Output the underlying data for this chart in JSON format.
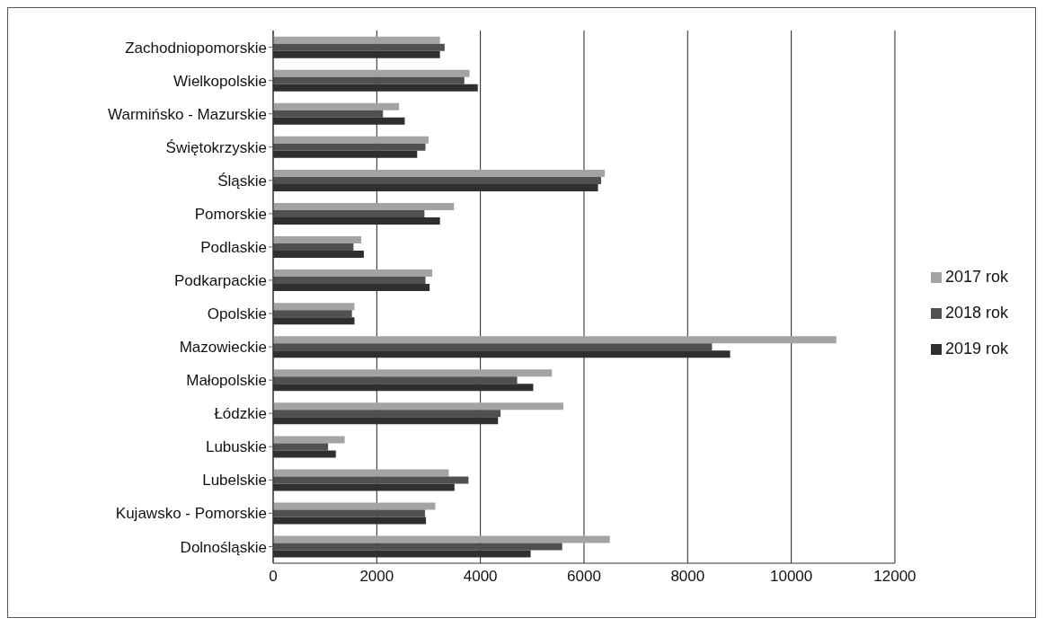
{
  "chart_data": {
    "type": "bar",
    "orientation": "horizontal",
    "categories": [
      "Zachodniopomorskie",
      "Wielkopolskie",
      "Warmińsko - Mazurskie",
      "Świętokrzyskie",
      "Śląskie",
      "Pomorskie",
      "Podlaskie",
      "Podkarpackie",
      "Opolskie",
      "Mazowieckie",
      "Małopolskie",
      "Łódzkie",
      "Lubuskie",
      "Lubelskie",
      "Kujawsko - Pomorskie",
      "Dolnośląskie"
    ],
    "series": [
      {
        "name": "2017 rok",
        "color": "#a3a3a3",
        "values": [
          3220,
          3790,
          2430,
          3000,
          6400,
          3490,
          1700,
          3070,
          1570,
          10870,
          5380,
          5600,
          1380,
          3390,
          3130,
          6500
        ]
      },
      {
        "name": "2018 rok",
        "color": "#505050",
        "values": [
          3310,
          3690,
          2120,
          2940,
          6330,
          2920,
          1550,
          2940,
          1520,
          8470,
          4710,
          4390,
          1060,
          3770,
          2930,
          5580
        ]
      },
      {
        "name": "2019 rok",
        "color": "#2f2f2f",
        "values": [
          3220,
          3950,
          2540,
          2780,
          6270,
          3220,
          1750,
          3020,
          1570,
          8820,
          5020,
          4340,
          1210,
          3500,
          2950,
          4970
        ]
      }
    ],
    "xlim": [
      0,
      12000
    ],
    "xticks": [
      0,
      2000,
      4000,
      6000,
      8000,
      10000,
      12000
    ],
    "grid": "x",
    "legend": "right"
  }
}
